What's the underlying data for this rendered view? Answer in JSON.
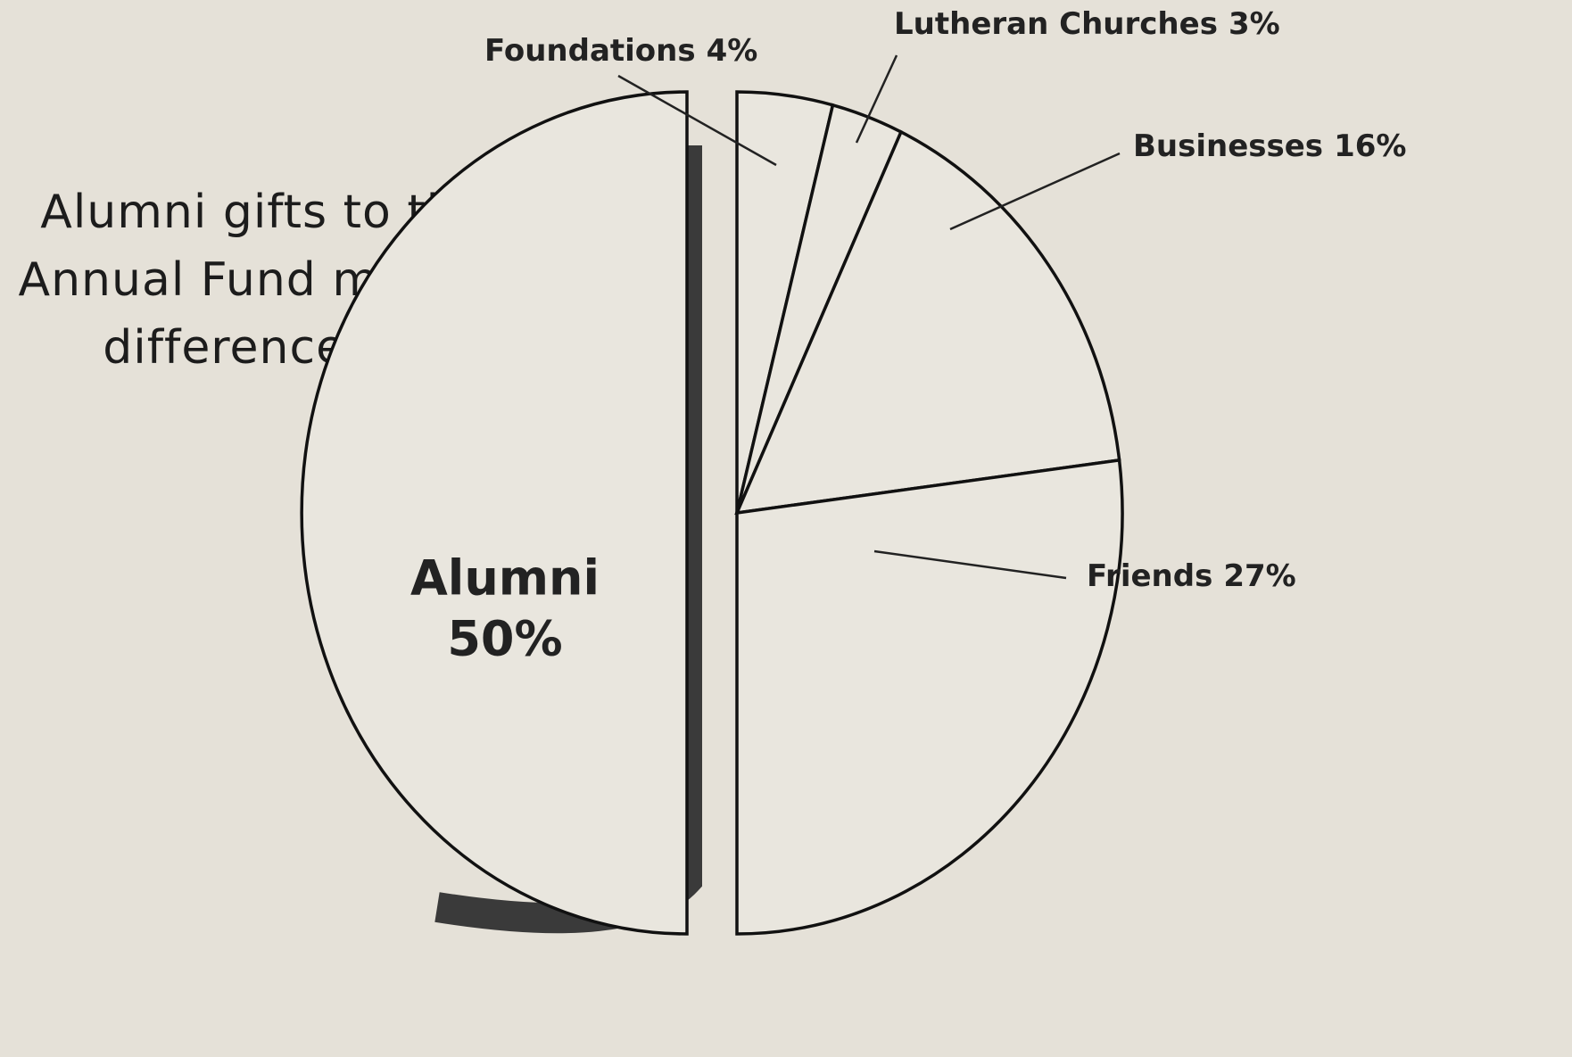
{
  "chart_data": {
    "type": "pie",
    "title": "Alumni gifts to the Annual Fund make a difference. . .",
    "categories": [
      "Foundations",
      "Lutheran Churches",
      "Businesses",
      "Friends",
      "Alumni"
    ],
    "values": [
      4,
      3,
      16,
      27,
      50
    ],
    "value_labels": [
      "4%",
      "3%",
      "16%",
      "27%",
      "50%"
    ],
    "color": "#e9e6de"
  }
}
